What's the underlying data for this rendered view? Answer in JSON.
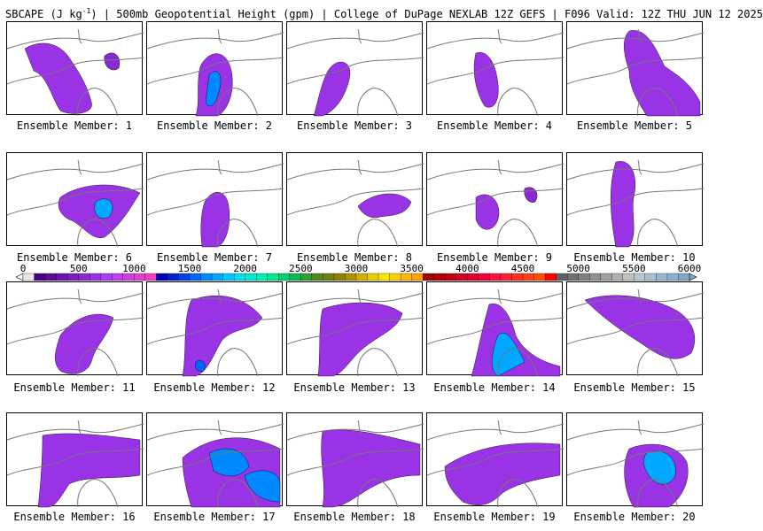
{
  "title": {
    "prefix": "SBCAPE (J kg",
    "sup": "-1",
    "rest": ") | 500mb Geopotential Height (gpm) | College of DuPage NEXLAB 12Z GEFS | F096 Valid: 12Z THU JUN 12 2025"
  },
  "panels": [
    {
      "label": "Ensemble Member: 1"
    },
    {
      "label": "Ensemble Member: 2"
    },
    {
      "label": "Ensemble Member: 3"
    },
    {
      "label": "Ensemble Member: 4"
    },
    {
      "label": "Ensemble Member: 5"
    },
    {
      "label": "Ensemble Member: 6"
    },
    {
      "label": "Ensemble Member: 7"
    },
    {
      "label": "Ensemble Member: 8"
    },
    {
      "label": "Ensemble Member: 9"
    },
    {
      "label": "Ensemble Member: 10"
    },
    {
      "label": "Ensemble Member: 11"
    },
    {
      "label": "Ensemble Member: 12"
    },
    {
      "label": "Ensemble Member: 13"
    },
    {
      "label": "Ensemble Member: 14"
    },
    {
      "label": "Ensemble Member: 15"
    },
    {
      "label": "Ensemble Member: 16"
    },
    {
      "label": "Ensemble Member: 17"
    },
    {
      "label": "Ensemble Member: 18"
    },
    {
      "label": "Ensemble Member: 19"
    },
    {
      "label": "Ensemble Member: 20"
    }
  ],
  "colorbar": {
    "ticks": [
      "0",
      "500",
      "1000",
      "1500",
      "2000",
      "2500",
      "3000",
      "3500",
      "4000",
      "4500",
      "5000",
      "5500",
      "6000"
    ],
    "colors": [
      "#e8e8e8",
      "#4b0082",
      "#5a0a96",
      "#6a14aa",
      "#7a1ebe",
      "#8a28d2",
      "#9a32e6",
      "#aa3cfa",
      "#c040f0",
      "#d040e0",
      "#e040d0",
      "#f040c0",
      "#0000b4",
      "#0020d0",
      "#0040ee",
      "#0066ff",
      "#0088ff",
      "#00a8ff",
      "#00c8ff",
      "#00e0f0",
      "#00e8d0",
      "#00f0b0",
      "#00e890",
      "#00d070",
      "#10b850",
      "#30a030",
      "#508820",
      "#708010",
      "#908000",
      "#b09000",
      "#d0b000",
      "#e8d000",
      "#f8e800",
      "#ffd000",
      "#ffb800",
      "#ffa000",
      "#a00000",
      "#b00000",
      "#c00010",
      "#d00020",
      "#e00030",
      "#f00040",
      "#ff1040",
      "#ff2030",
      "#ff3020",
      "#ff4010",
      "#ff5000",
      "#ff0000",
      "#606060",
      "#707070",
      "#808080",
      "#909090",
      "#a0a0a0",
      "#b0b0b0",
      "#c0c0c0",
      "#b8c8d0",
      "#a8c0d0",
      "#98b8d0",
      "#88b0d0",
      "#80a8c8"
    ]
  }
}
